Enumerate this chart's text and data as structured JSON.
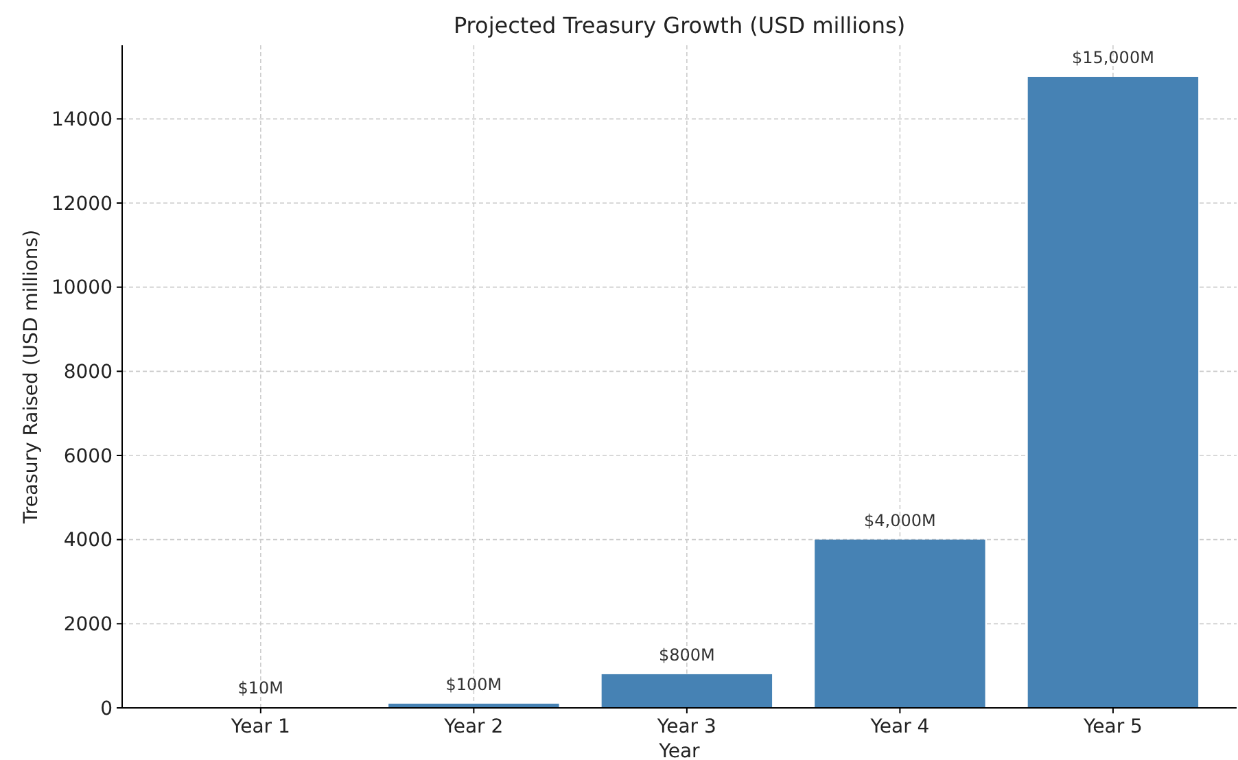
{
  "chart_data": {
    "type": "bar",
    "title": "Projected Treasury Growth (USD millions)",
    "xlabel": "Year",
    "ylabel": "Treasury Raised (USD millions)",
    "categories": [
      "Year 1",
      "Year 2",
      "Year 3",
      "Year 4",
      "Year 5"
    ],
    "values": [
      10,
      100,
      800,
      4000,
      15000
    ],
    "value_labels": [
      "$10M",
      "$100M",
      "$800M",
      "$4,000M",
      "$15,000M"
    ],
    "color": "#4682b4",
    "ylim": [
      0,
      15750
    ],
    "yticks": [
      0,
      2000,
      4000,
      6000,
      8000,
      10000,
      12000,
      14000
    ],
    "grid": true
  }
}
